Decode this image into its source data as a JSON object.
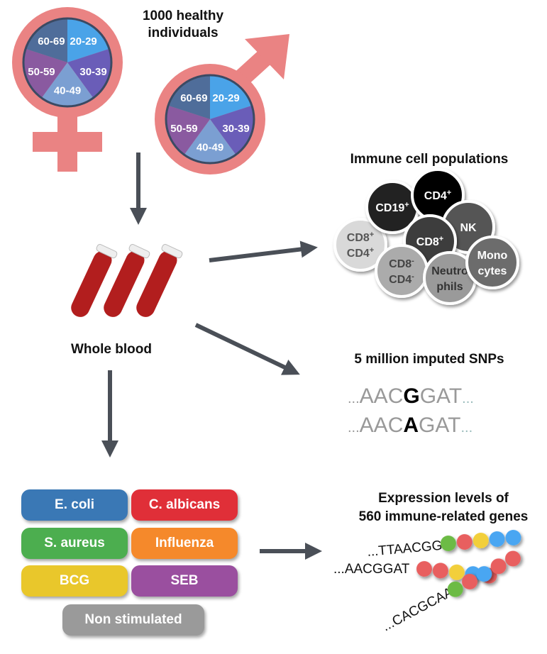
{
  "cohort": {
    "title_line1": "1000 healthy",
    "title_line2": "individuals",
    "age_groups": [
      "20-29",
      "30-39",
      "40-49",
      "50-59",
      "60-69"
    ],
    "age_colors": [
      "#4aa3e8",
      "#6a5db8",
      "#7b9fd2",
      "#8a5aa0",
      "#4f6d9a"
    ],
    "symbol_color": "#ea8383"
  },
  "blood": {
    "label": "Whole blood"
  },
  "cells": {
    "title": "Immune cell populations",
    "items": [
      {
        "line1": "CD8",
        "sup1": "+",
        "line2": "CD4",
        "sup2": "+"
      },
      {
        "line1": "CD19",
        "sup1": "+"
      },
      {
        "line1": "CD4",
        "sup1": "+"
      },
      {
        "line1": "NK"
      },
      {
        "line1": "CD8",
        "sup1": "+"
      },
      {
        "line1": "CD8",
        "sup1": "-",
        "line2": "CD4",
        "sup2": "-"
      },
      {
        "line1": "Neutro",
        "line2": "phils"
      },
      {
        "line1": "Mono",
        "line2": "cytes"
      }
    ]
  },
  "snps": {
    "title": "5 million imputed SNPs",
    "seq1": {
      "pre": "...",
      "left": "AAC",
      "allele": "G",
      "right": "GAT",
      "post": "..."
    },
    "seq2": {
      "pre": "...",
      "left": "AAC",
      "allele": "A",
      "right": "GAT",
      "post": "..."
    }
  },
  "stimuli": {
    "items": [
      {
        "label": "E. coli",
        "color": "#3a78b5"
      },
      {
        "label": "C. albicans",
        "color": "#e02f38"
      },
      {
        "label": "S. aureus",
        "color": "#4cae4f"
      },
      {
        "label": "Influenza",
        "color": "#f5892b"
      },
      {
        "label": "BCG",
        "color": "#e9c72b"
      },
      {
        "label": "SEB",
        "color": "#9a4f9f"
      },
      {
        "label": "Non stimulated",
        "color": "#9a9a9a"
      }
    ]
  },
  "expression": {
    "title_line1": "Expression levels of",
    "title_line2": "560 immune-related genes",
    "seq1": "...TTAACGG",
    "seq2": "...AACGGAT",
    "seq3": "...CACGCAA"
  }
}
